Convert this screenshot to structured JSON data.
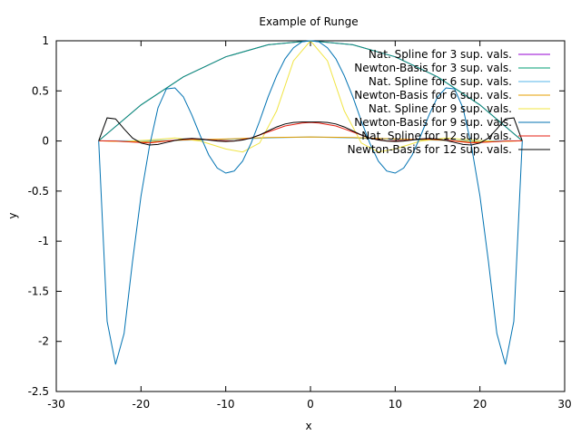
{
  "chart_data": {
    "type": "line",
    "title": "Example of Runge",
    "xlabel": "x",
    "ylabel": "y",
    "xlim": [
      -30,
      30
    ],
    "ylim": [
      -2.5,
      1
    ],
    "xticks": [
      -30,
      -20,
      -10,
      0,
      10,
      20,
      30
    ],
    "yticks": [
      -2.5,
      -2,
      -1.5,
      -1,
      -0.5,
      0,
      0.5,
      1
    ],
    "legend_position": "top-right",
    "grid": false,
    "series": [
      {
        "name": "Nat. Spline for 3 sup. vals.",
        "color": "#9400d3",
        "x": [
          -25,
          -20,
          -15,
          -10,
          -5,
          0,
          5,
          10,
          15,
          20,
          25
        ],
        "y": [
          0.0016,
          0.36,
          0.64,
          0.84,
          0.96,
          1.0,
          0.96,
          0.84,
          0.64,
          0.36,
          0.0016
        ]
      },
      {
        "name": "Newton-Basis for 3 sup. vals.",
        "color": "#009e73",
        "x": [
          -25,
          -20,
          -15,
          -10,
          -5,
          0,
          5,
          10,
          15,
          20,
          25
        ],
        "y": [
          0.0016,
          0.36,
          0.64,
          0.84,
          0.96,
          1.0,
          0.96,
          0.84,
          0.64,
          0.36,
          0.0016
        ]
      },
      {
        "name": "Nat. Spline for 6 sup. vals.",
        "color": "#56b4e9",
        "x": [
          -25,
          -20,
          -15,
          -10,
          -5,
          0,
          5,
          10,
          15,
          20,
          25
        ],
        "y": [
          0.0016,
          0.002,
          0.008,
          0.015,
          0.03,
          0.04,
          0.03,
          0.015,
          0.008,
          0.002,
          0.0016
        ]
      },
      {
        "name": "Newton-Basis for 6 sup. vals.",
        "color": "#e69f00",
        "x": [
          -25,
          -20,
          -15,
          -10,
          -5,
          0,
          5,
          10,
          15,
          20,
          25
        ],
        "y": [
          0.0016,
          -0.01,
          0.01,
          0.02,
          0.035,
          0.04,
          0.035,
          0.02,
          0.01,
          -0.01,
          0.0016
        ]
      },
      {
        "name": "Nat. Spline for 9 sup. vals.",
        "color": "#f0e442",
        "x": [
          -25,
          -22,
          -19,
          -16,
          -13,
          -10,
          -8,
          -6,
          -4,
          -2,
          0,
          2,
          4,
          6,
          8,
          10,
          13,
          16,
          19,
          22,
          25
        ],
        "y": [
          0.0016,
          -0.005,
          0.01,
          0.03,
          0.0,
          -0.08,
          -0.11,
          -0.02,
          0.3,
          0.8,
          1.0,
          0.8,
          0.3,
          -0.02,
          -0.11,
          -0.08,
          0.0,
          0.03,
          0.01,
          -0.005,
          0.0016
        ]
      },
      {
        "name": "Newton-Basis for 9 sup. vals.",
        "color": "#0072b2",
        "x": [
          -25,
          -24,
          -23,
          -22,
          -21,
          -20,
          -19,
          -18,
          -17,
          -16,
          -15,
          -14,
          -13,
          -12,
          -11,
          -10,
          -9,
          -8,
          -7,
          -6,
          -5,
          -4,
          -3,
          -2,
          -1,
          0,
          1,
          2,
          3,
          4,
          5,
          6,
          7,
          8,
          9,
          10,
          11,
          12,
          13,
          14,
          15,
          16,
          17,
          18,
          19,
          20,
          21,
          22,
          23,
          24,
          25
        ],
        "y": [
          0.0016,
          -1.8,
          -2.23,
          -1.92,
          -1.2,
          -0.55,
          -0.05,
          0.33,
          0.52,
          0.53,
          0.44,
          0.26,
          0.05,
          -0.14,
          -0.27,
          -0.32,
          -0.3,
          -0.2,
          -0.02,
          0.2,
          0.44,
          0.65,
          0.82,
          0.93,
          0.99,
          1.0,
          0.99,
          0.93,
          0.82,
          0.65,
          0.44,
          0.2,
          -0.02,
          -0.2,
          -0.3,
          -0.32,
          -0.27,
          -0.14,
          0.05,
          0.26,
          0.44,
          0.53,
          0.52,
          0.33,
          -0.05,
          -0.55,
          -1.2,
          -1.92,
          -2.23,
          -1.8,
          0.0016
        ]
      },
      {
        "name": "Nat. Spline for 12 sup. vals.",
        "color": "#e51e10",
        "x": [
          -25,
          -23,
          -21,
          -19,
          -17,
          -15,
          -13,
          -11,
          -9,
          -7,
          -5,
          -3,
          -1,
          0,
          1,
          3,
          5,
          7,
          9,
          11,
          13,
          15,
          17,
          19,
          21,
          23,
          25
        ],
        "y": [
          0.0016,
          0.0,
          -0.01,
          -0.02,
          0.0,
          0.015,
          0.02,
          0.005,
          0.0,
          0.03,
          0.09,
          0.15,
          0.18,
          0.185,
          0.18,
          0.15,
          0.09,
          0.03,
          0.0,
          0.005,
          0.02,
          0.015,
          0.0,
          -0.02,
          -0.01,
          0.0,
          0.0016
        ]
      },
      {
        "name": "Newton-Basis for 12 sup. vals.",
        "color": "#000000",
        "x": [
          -25,
          -24,
          -23,
          -22,
          -21,
          -20,
          -19,
          -18,
          -17,
          -16,
          -15,
          -14,
          -13,
          -12,
          -11,
          -10,
          -9,
          -8,
          -7,
          -6,
          -5,
          -4,
          -3,
          -2,
          -1,
          0,
          1,
          2,
          3,
          4,
          5,
          6,
          7,
          8,
          9,
          10,
          11,
          12,
          13,
          14,
          15,
          16,
          17,
          18,
          19,
          20,
          21,
          22,
          23,
          24,
          25
        ],
        "y": [
          0.0016,
          0.23,
          0.22,
          0.12,
          0.03,
          -0.02,
          -0.04,
          -0.035,
          -0.015,
          0.005,
          0.02,
          0.025,
          0.02,
          0.01,
          0.0,
          -0.005,
          0.0,
          0.01,
          0.03,
          0.06,
          0.1,
          0.14,
          0.17,
          0.185,
          0.19,
          0.19,
          0.19,
          0.185,
          0.17,
          0.14,
          0.1,
          0.06,
          0.03,
          0.01,
          0.0,
          -0.005,
          0.0,
          0.01,
          0.02,
          0.025,
          0.02,
          0.005,
          -0.015,
          -0.035,
          -0.04,
          -0.02,
          0.03,
          0.12,
          0.22,
          0.23,
          0.0016
        ]
      }
    ]
  }
}
